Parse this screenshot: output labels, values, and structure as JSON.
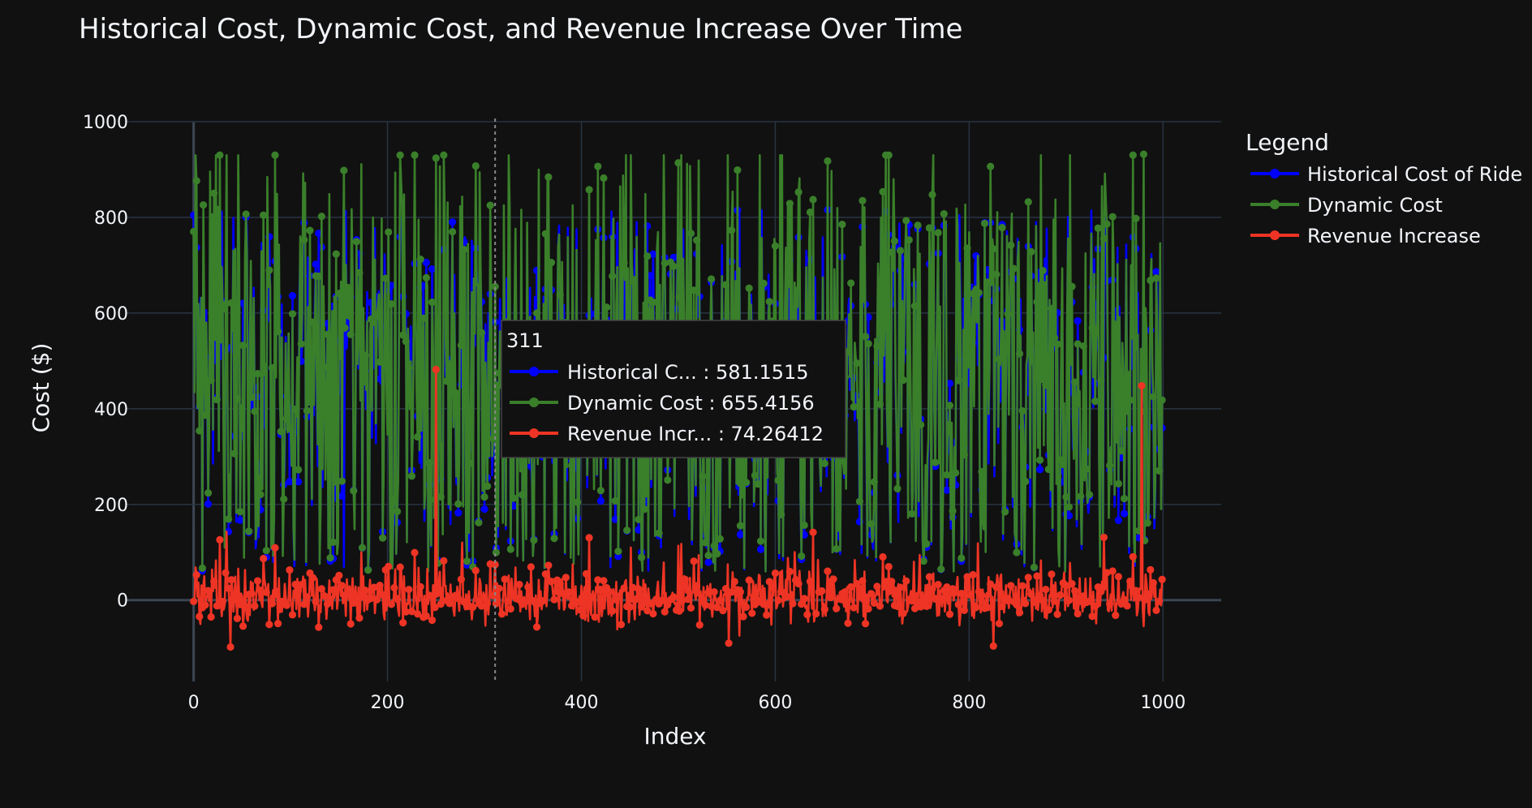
{
  "chart_data": {
    "type": "line",
    "title": "Historical Cost, Dynamic Cost, and Revenue Increase Over Time",
    "xlabel": "Index",
    "ylabel": "Cost ($)",
    "xlim": [
      -70,
      1060
    ],
    "ylim": [
      -170,
      1000
    ],
    "x_ticks": [
      0,
      200,
      400,
      600,
      800,
      1000
    ],
    "y_ticks": [
      0,
      200,
      400,
      600,
      800,
      1000
    ],
    "grid": true,
    "legend": {
      "title": "Legend",
      "position": "right"
    },
    "series": [
      {
        "name": "Historical Cost of Ride",
        "color": "#0000ff",
        "x_range": [
          0,
          999
        ],
        "approx_range": [
          50,
          840
        ],
        "approx_mean": 370,
        "samples": [
          {
            "x": 311,
            "y": 581.1515
          }
        ]
      },
      {
        "name": "Dynamic Cost",
        "color": "#3a7f2a",
        "x_range": [
          0,
          999
        ],
        "approx_range": [
          60,
          930
        ],
        "approx_mean": 400,
        "samples": [
          {
            "x": 10,
            "y": 826
          },
          {
            "x": 155,
            "y": 898
          },
          {
            "x": 250,
            "y": 924
          },
          {
            "x": 311,
            "y": 655.4156
          },
          {
            "x": 500,
            "y": 914
          },
          {
            "x": 980,
            "y": 932
          }
        ]
      },
      {
        "name": "Revenue Increase",
        "color": "#ee3424",
        "x_range": [
          0,
          999
        ],
        "approx_range": [
          -100,
          480
        ],
        "approx_mean": 30,
        "samples": [
          {
            "x": 38,
            "y": -98
          },
          {
            "x": 250,
            "y": 482
          },
          {
            "x": 311,
            "y": 74.26412
          },
          {
            "x": 552,
            "y": -90
          },
          {
            "x": 825,
            "y": -96
          },
          {
            "x": 978,
            "y": 448
          }
        ]
      }
    ],
    "hover": {
      "x": 311,
      "header": "311",
      "rows": [
        {
          "label": "Historical C... : 581.1515",
          "color": "#0000ff"
        },
        {
          "label": "Dynamic Cost : 655.4156",
          "color": "#3a7f2a"
        },
        {
          "label": "Revenue Incr... : 74.26412",
          "color": "#ee3424"
        }
      ]
    }
  },
  "colors": {
    "background": "#111111",
    "grid": "#283442",
    "zeroline": "#3b4654",
    "text": "#f2f5fa",
    "hover_background": "#111111",
    "hover_border": "#444444"
  }
}
